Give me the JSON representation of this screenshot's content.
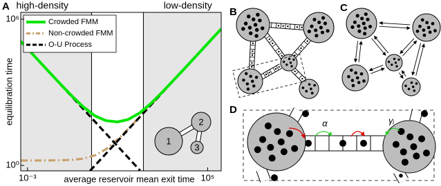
{
  "chart_data": {
    "type": "line",
    "panel_label": "A",
    "xlabel": "average reservoir mean exit time",
    "ylabel": "equilibration time",
    "xscale": "log",
    "yscale": "log",
    "xlim": [
      0.0005,
      400000
    ],
    "ylim": [
      0.6,
      1900000
    ],
    "xticks": [
      {
        "value": 0.001,
        "label": "10⁻³"
      },
      {
        "value": 100000,
        "label": "10⁵"
      }
    ],
    "yticks": [
      {
        "value": 1,
        "label": "10⁰"
      },
      {
        "value": 1000000,
        "label": "10⁶"
      }
    ],
    "regions": [
      {
        "label": "high-density",
        "x": [
          0.0005,
          0.7
        ],
        "color": "#e6e6e6"
      },
      {
        "label": "low-density",
        "x": [
          140,
          400000
        ],
        "color": "#e6e6e6"
      }
    ],
    "legend": "upper left",
    "series": [
      {
        "name": "Crowded FMM",
        "color": "#00e600",
        "style": "solid",
        "x": [
          0.0005,
          0.001,
          0.003,
          0.01,
          0.03,
          0.1,
          0.3,
          1,
          3,
          10,
          30,
          100,
          300,
          1000,
          10000,
          100000,
          400000
        ],
        "values": [
          124000,
          62000,
          20700,
          6250,
          2110,
          665,
          252,
          108,
          69,
          61,
          77,
          146,
          345,
          1050,
          10000,
          100000,
          400000
        ]
      },
      {
        "name": "Non-crowded FMM",
        "color": "#c8a06e",
        "style": "dashdot",
        "x": [
          0.0005,
          0.001,
          0.003,
          0.01,
          0.03,
          0.1,
          0.3,
          1,
          3,
          10,
          30,
          100,
          300,
          1000,
          10000,
          100000,
          400000
        ],
        "values": [
          1.6,
          1.6,
          1.6,
          1.61,
          1.63,
          1.7,
          1.9,
          2.6,
          4.6,
          11.6,
          31.6,
          102,
          302,
          1000,
          10000,
          100000,
          400000
        ]
      },
      {
        "name": "O-U Process",
        "color": "#000000",
        "style": "dashed",
        "x": [
          0.0005,
          100,
          100,
          0.6,
          400000
        ],
        "values": [
          124000,
          0.62,
          null,
          0.6,
          400000
        ]
      }
    ],
    "inset_nodes": [
      "1",
      "2",
      "3"
    ]
  },
  "panels": {
    "B": "B",
    "C": "C",
    "D": "D"
  },
  "panel_d": {
    "rates": [
      "α",
      "γᵢ"
    ]
  }
}
